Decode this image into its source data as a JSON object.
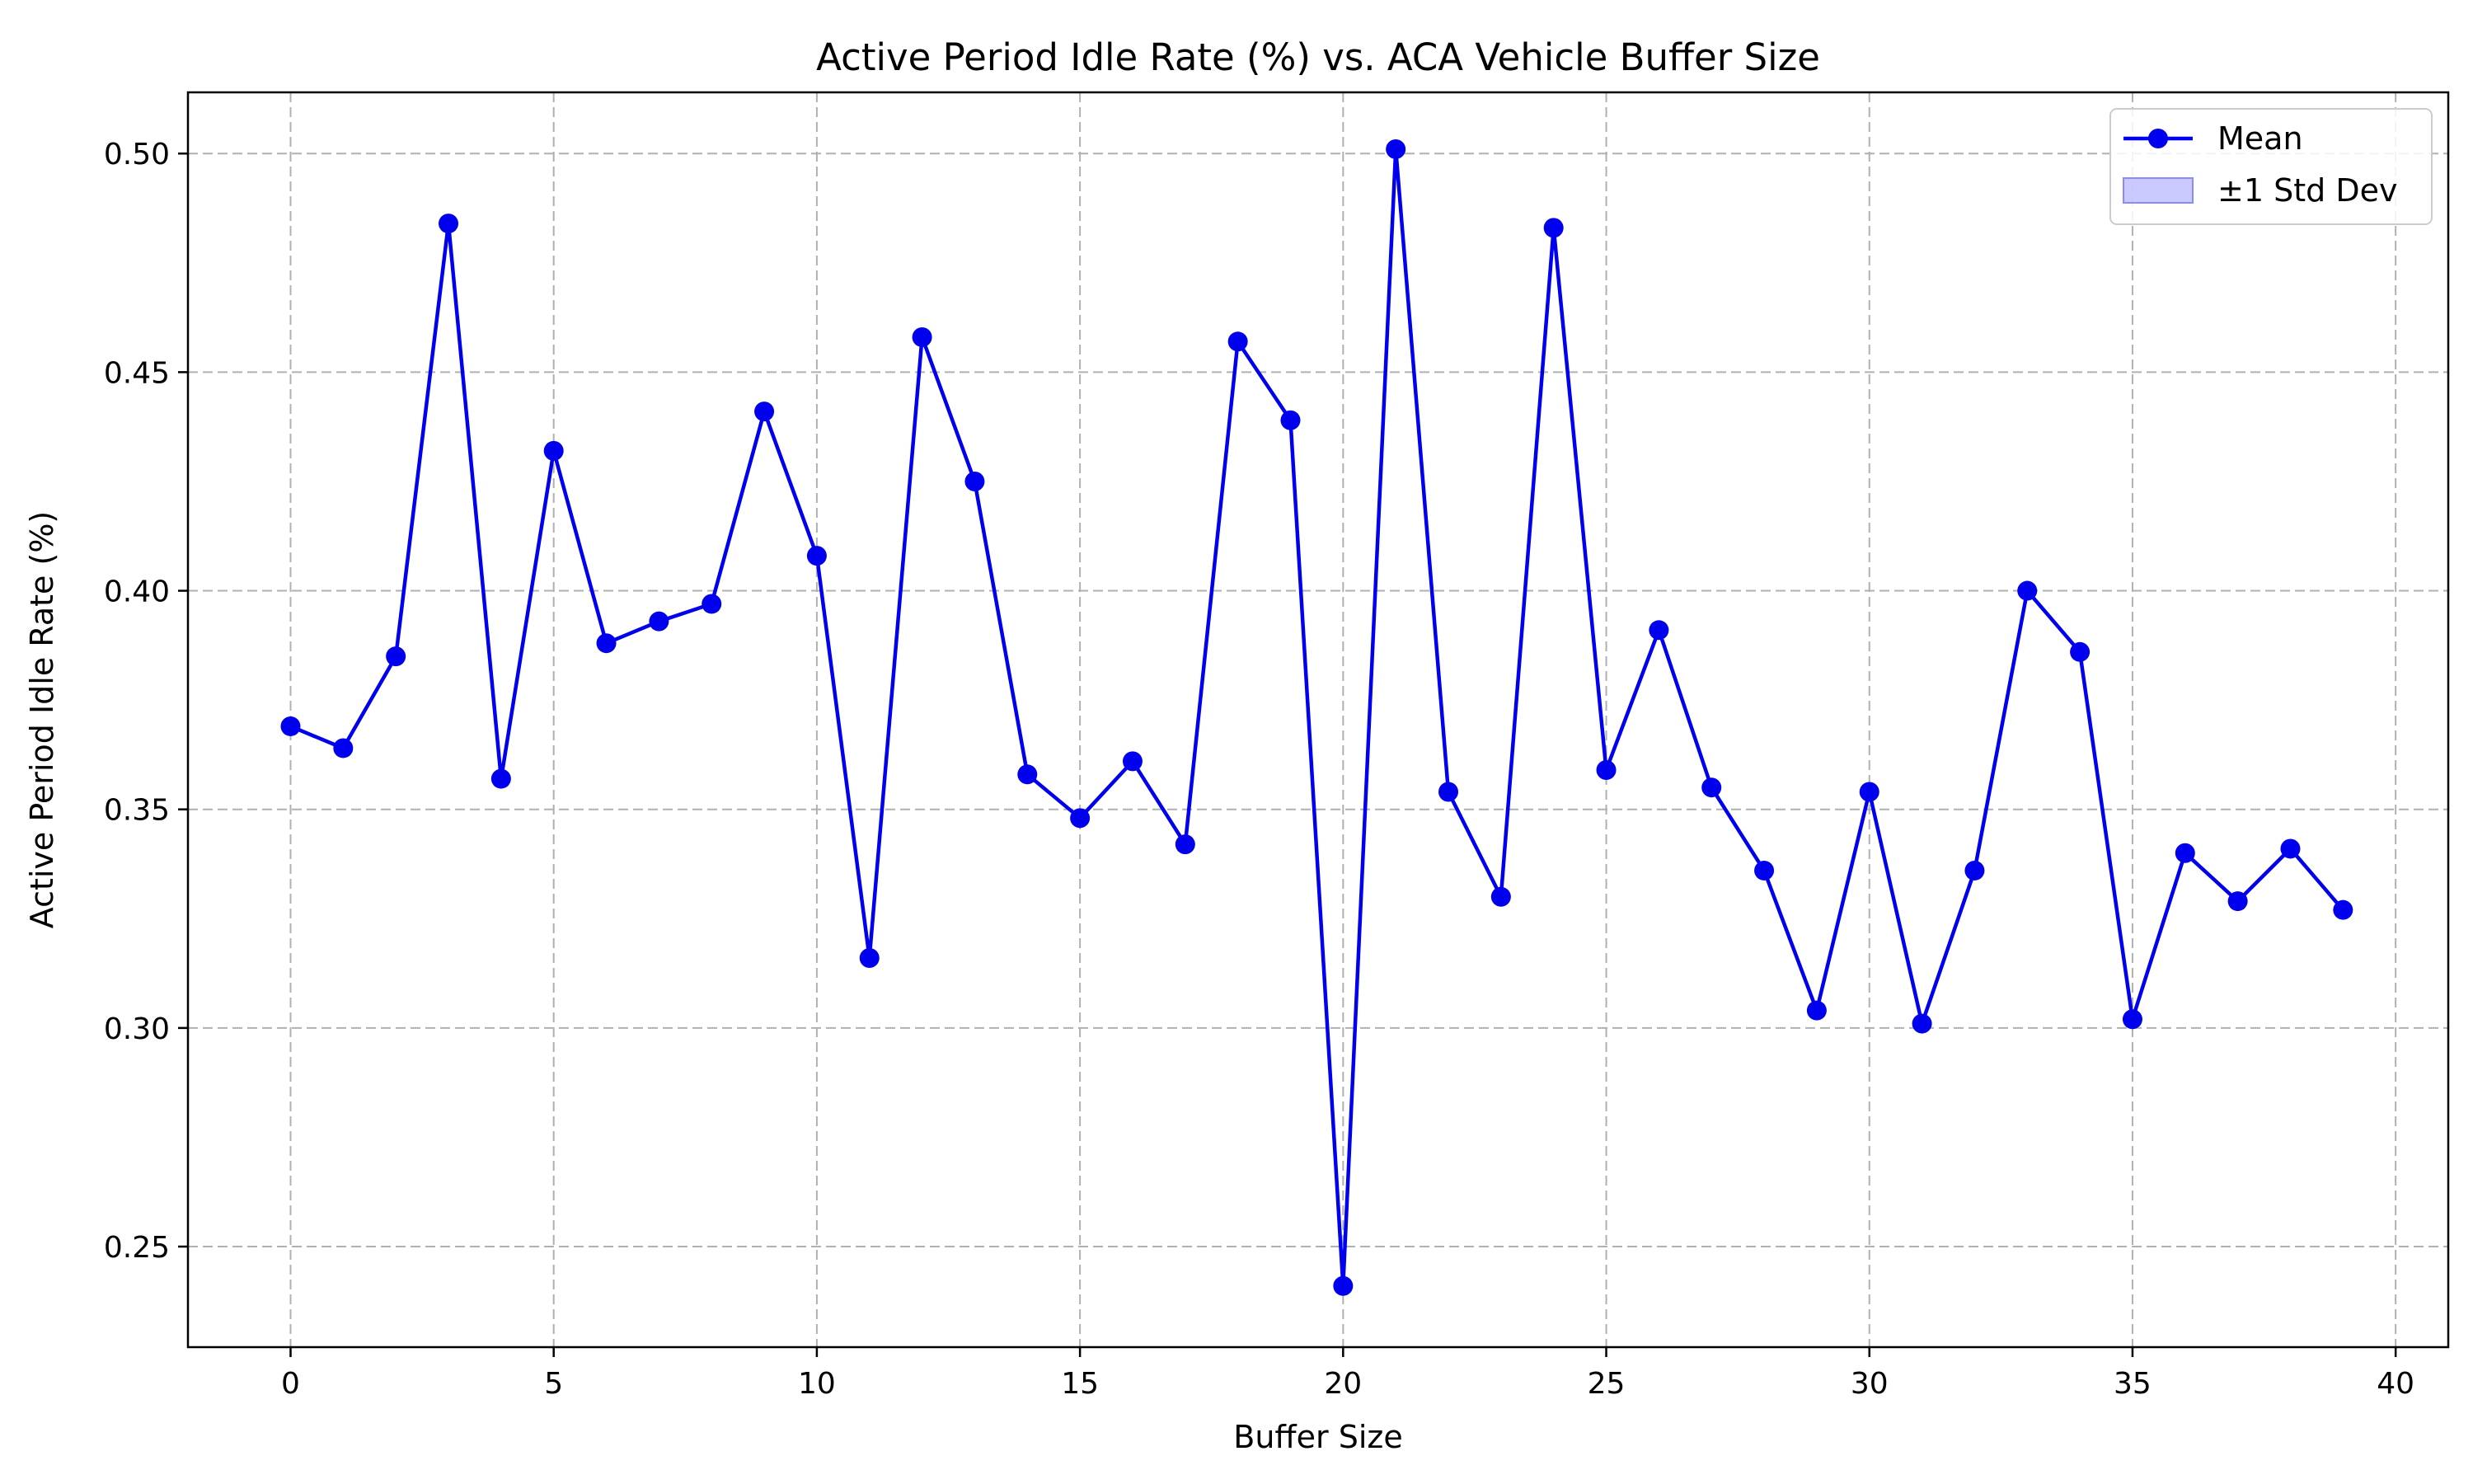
{
  "chart_data": {
    "type": "line",
    "title": "Active Period Idle Rate (%) vs. ACA Vehicle Buffer Size",
    "xlabel": "Buffer Size",
    "ylabel": "Active Period Idle Rate (%)",
    "xlim": [
      -1.95,
      41.0
    ],
    "ylim": [
      0.227,
      0.514
    ],
    "x_ticks": [
      0,
      5,
      10,
      15,
      20,
      25,
      30,
      35,
      40
    ],
    "y_ticks": [
      0.25,
      0.3,
      0.35,
      0.4,
      0.45,
      0.5
    ],
    "y_tick_format": 2,
    "grid": true,
    "legend_position": "top-right",
    "legend": [
      {
        "label": "Mean",
        "kind": "line-marker"
      },
      {
        "label": "±1 Std Dev",
        "kind": "band"
      }
    ],
    "series": [
      {
        "name": "Mean",
        "color": "#0000ee",
        "x": [
          0,
          1,
          2,
          3,
          4,
          5,
          6,
          7,
          8,
          9,
          10,
          11,
          12,
          13,
          14,
          15,
          16,
          17,
          18,
          19,
          20,
          21,
          22,
          23,
          24,
          25,
          26,
          27,
          28,
          29,
          30,
          31,
          32,
          33,
          34,
          35,
          36,
          37,
          38,
          39
        ],
        "values": [
          0.369,
          0.364,
          0.385,
          0.484,
          0.357,
          0.432,
          0.388,
          0.393,
          0.397,
          0.441,
          0.408,
          0.316,
          0.458,
          0.425,
          0.358,
          0.348,
          0.361,
          0.342,
          0.457,
          0.439,
          0.241,
          0.501,
          0.354,
          0.33,
          0.483,
          0.359,
          0.391,
          0.355,
          0.336,
          0.304,
          0.354,
          0.301,
          0.336,
          0.4,
          0.386,
          0.302,
          0.34,
          0.329,
          0.341,
          0.327
        ]
      }
    ],
    "band": {
      "name": "±1 Std Dev",
      "color": "#b4b4ff"
    }
  }
}
